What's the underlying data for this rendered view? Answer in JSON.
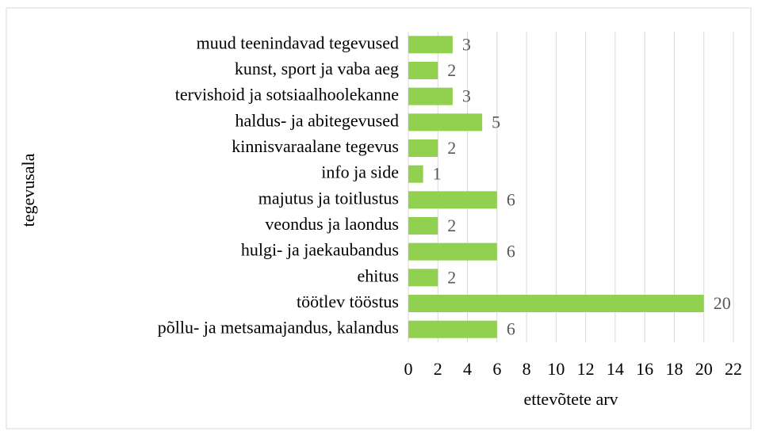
{
  "chart_data": {
    "type": "bar",
    "orientation": "horizontal",
    "categories": [
      "muud teenindavad tegevused",
      "kunst, sport ja vaba aeg",
      "tervishoid ja sotsiaalhoolekanne",
      "haldus- ja abitegevused",
      "kinnisvaraalane tegevus",
      "info ja side",
      "majutus ja toitlustus",
      "veondus ja laondus",
      "hulgi- ja jaekaubandus",
      "ehitus",
      "töötlev tööstus",
      "põllu- ja metsamajandus, kalandus"
    ],
    "values": [
      3,
      2,
      3,
      5,
      2,
      1,
      6,
      2,
      6,
      2,
      20,
      6
    ],
    "color": "#92d050",
    "x_label": "ettevõtete arv",
    "y_label": "tegevusala",
    "xlim": [
      0,
      22
    ],
    "xticks": [
      0,
      2,
      4,
      6,
      8,
      10,
      12,
      14,
      16,
      18,
      20,
      22
    ],
    "grid": true
  }
}
